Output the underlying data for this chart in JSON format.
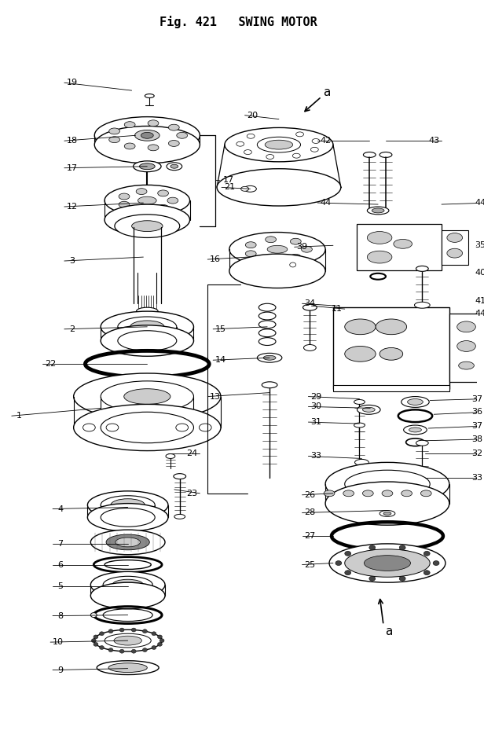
{
  "title": "Fig. 421   SWING MOTOR",
  "bg_color": "#ffffff",
  "lc": "#000000",
  "fig_w": 6.16,
  "fig_h": 9.48,
  "dpi": 100
}
